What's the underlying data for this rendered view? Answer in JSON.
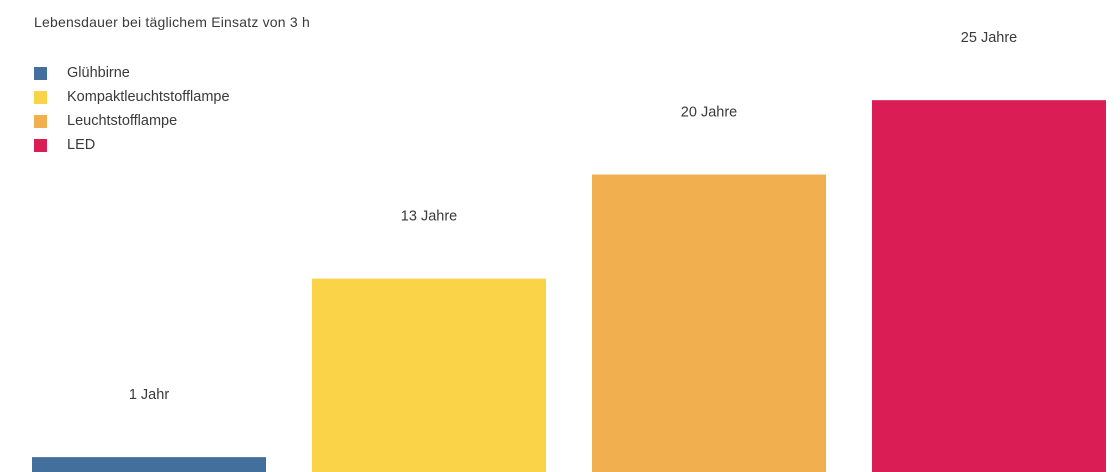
{
  "chart_data": {
    "type": "bar",
    "title": "",
    "subtitle": "Lebensdauer bei täglichem Einsatz von 3 h",
    "xlabel": "",
    "ylabel": "",
    "unit": "Jahre",
    "categories": [
      "Glühbirne",
      "Kompaktleuchtstofflampe",
      "Leuchtstofflampe",
      "LED"
    ],
    "values": [
      1,
      13,
      20,
      25
    ],
    "data_labels": [
      "1 Jahr",
      "13 Jahre",
      "20 Jahre",
      "25 Jahre"
    ],
    "colors": [
      "#436f9c",
      "#fbd349",
      "#f2af4f",
      "#db1d55"
    ],
    "ylim": [
      0,
      31.6
    ],
    "grid": false,
    "legend_position": "top-left"
  }
}
